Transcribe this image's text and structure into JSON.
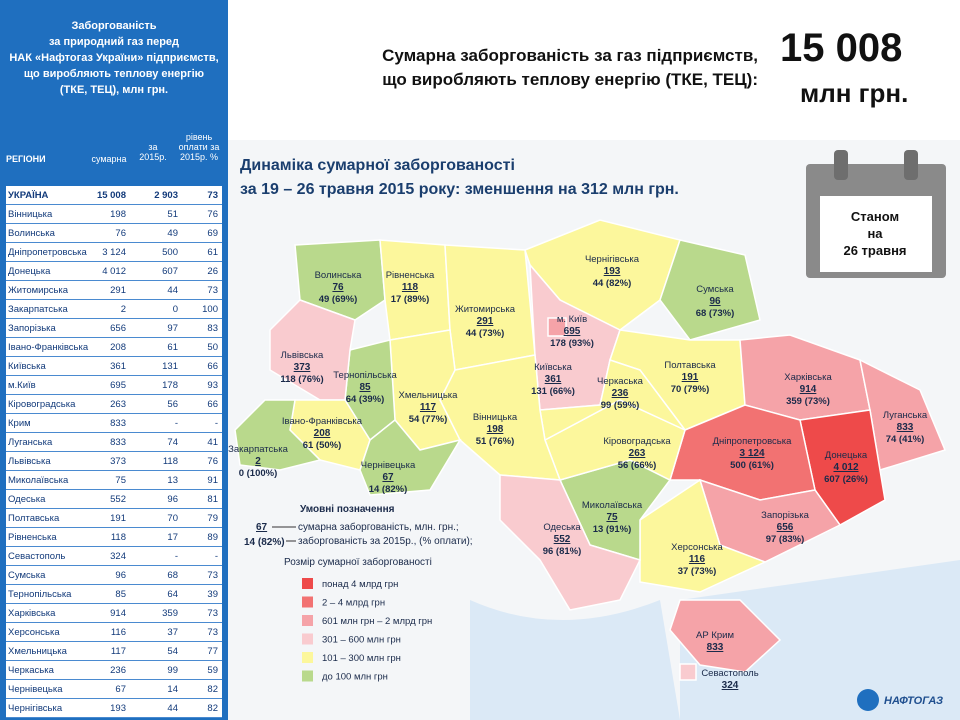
{
  "sidebar": {
    "title": [
      "Заборгованість",
      "за природний газ перед",
      "НАК «Нафтогаз України» підприємств,",
      "що виробляють теплову енергію",
      "(ТКЕ, ТЕЦ), млн грн."
    ],
    "table": {
      "header": [
        "РЕГІОНИ",
        "сумарна",
        "за 2015р.",
        "рівень оплати за 2015р. %"
      ],
      "rows": [
        [
          "УКРАЇНА",
          "15 008",
          "2 903",
          "73"
        ],
        [
          "Вінницька",
          "198",
          "51",
          "76"
        ],
        [
          "Волинська",
          "76",
          "49",
          "69"
        ],
        [
          "Дніпропетровська",
          "3 124",
          "500",
          "61"
        ],
        [
          "Донецька",
          "4 012",
          "607",
          "26"
        ],
        [
          "Житомирська",
          "291",
          "44",
          "73"
        ],
        [
          "Закарпатська",
          "2",
          "0",
          "100"
        ],
        [
          "Запорізька",
          "656",
          "97",
          "83"
        ],
        [
          "Івано-Франківська",
          "208",
          "61",
          "50"
        ],
        [
          "Київська",
          "361",
          "131",
          "66"
        ],
        [
          "м.Київ",
          "695",
          "178",
          "93"
        ],
        [
          "Кіровоградська",
          "263",
          "56",
          "66"
        ],
        [
          "Крим",
          "833",
          "-",
          "-"
        ],
        [
          "Луганська",
          "833",
          "74",
          "41"
        ],
        [
          "Львівська",
          "373",
          "118",
          "76"
        ],
        [
          "Миколаївська",
          "75",
          "13",
          "91"
        ],
        [
          "Одеська",
          "552",
          "96",
          "81"
        ],
        [
          "Полтавська",
          "191",
          "70",
          "79"
        ],
        [
          "Рівненська",
          "118",
          "17",
          "89"
        ],
        [
          "Севастополь",
          "324",
          "-",
          "-"
        ],
        [
          "Сумська",
          "96",
          "68",
          "73"
        ],
        [
          "Тернопільська",
          "85",
          "64",
          "39"
        ],
        [
          "Харківська",
          "914",
          "359",
          "73"
        ],
        [
          "Херсонська",
          "116",
          "37",
          "73"
        ],
        [
          "Хмельницька",
          "117",
          "54",
          "77"
        ],
        [
          "Черкаська",
          "236",
          "99",
          "59"
        ],
        [
          "Чернівецька",
          "67",
          "14",
          "82"
        ],
        [
          "Чернігівська",
          "193",
          "44",
          "82"
        ]
      ]
    }
  },
  "header": {
    "headline": [
      "Сумарна заборгованість за газ підприємств,",
      "що виробляють теплову енергію (ТКЕ, ТЕЦ):"
    ],
    "total": "15 008",
    "unit": "млн грн."
  },
  "subtitle": [
    "Динаміка сумарної заборгованості",
    "за 19 – 26 травня 2015 року: зменшення на 312 млн грн."
  ],
  "calendar": [
    "Станом",
    "на",
    "26 травня"
  ],
  "map": {
    "regions": [
      {
        "name": "Волинська",
        "total": "76",
        "detail": "49 (69%)"
      },
      {
        "name": "Рівненська",
        "total": "118",
        "detail": "17 (89%)"
      },
      {
        "name": "Житомирська",
        "total": "291",
        "detail": "44 (73%)"
      },
      {
        "name": "Чернігівська",
        "total": "193",
        "detail": "44 (82%)"
      },
      {
        "name": "Сумська",
        "total": "96",
        "detail": "68 (73%)"
      },
      {
        "name": "Київська",
        "total": "361",
        "detail": "131 (66%)"
      },
      {
        "name": "Полтавська",
        "total": "191",
        "detail": "70 (79%)"
      },
      {
        "name": "Харківська",
        "total": "914",
        "detail": "359 (73%)"
      },
      {
        "name": "Луганська",
        "total": "833",
        "detail": "74 (41%)"
      },
      {
        "name": "Донецька",
        "total": "4 012",
        "detail": "607 (26%)"
      },
      {
        "name": "Дніпропетровська",
        "total": "3 124",
        "detail": "500 (61%)"
      },
      {
        "name": "Запорізька",
        "total": "656",
        "detail": "97 (83%)"
      },
      {
        "name": "Херсонська",
        "total": "116",
        "detail": "37 (73%)"
      },
      {
        "name": "Миколаївська",
        "total": "75",
        "detail": "13 (91%)"
      },
      {
        "name": "Кіровоградська",
        "total": "263",
        "detail": "56 (66%)"
      },
      {
        "name": "Черкаська",
        "total": "236",
        "detail": "99 (59%)"
      },
      {
        "name": "Вінницька",
        "total": "198",
        "detail": "51 (76%)"
      },
      {
        "name": "Хмельницька",
        "total": "117",
        "detail": "54 (77%)"
      },
      {
        "name": "Тернопільська",
        "total": "85",
        "detail": "64 (39%)"
      },
      {
        "name": "Львівська",
        "total": "373",
        "detail": "118 (76%)"
      },
      {
        "name": "Івано-Франківська",
        "total": "208",
        "detail": "61 (50%)"
      },
      {
        "name": "Закарпатська",
        "total": "2",
        "detail": "0 (100%)"
      },
      {
        "name": "Чернівецька",
        "total": "67",
        "detail": "14 (82%)"
      },
      {
        "name": "Одеська",
        "total": "552",
        "detail": "96 (81%)"
      },
      {
        "name": "АР Крим",
        "total": "833"
      },
      {
        "name": "м. Київ",
        "total": "695",
        "detail": "178 (93%)"
      },
      {
        "name": "Севастополь",
        "total": "324"
      }
    ]
  },
  "legend": {
    "title": "Умовні позначення",
    "example_total": "67",
    "example_detail": "14 (82%)",
    "example_text": [
      "сумарна заборгованість, млн. грн.;",
      "заборгованість за 2015р., (% оплати);"
    ],
    "size_title": "Розмір сумарної заборгованості",
    "ranges": [
      {
        "label": "понад 4 млрд грн",
        "color": "#ee4a4a"
      },
      {
        "label": "2 – 4 млрд грн",
        "color": "#f27272"
      },
      {
        "label": "601 млн грн – 2 млрд грн",
        "color": "#f5a3a8"
      },
      {
        "label": "301 – 600 млн грн",
        "color": "#f9cbcf"
      },
      {
        "label": "101 – 300 млн грн",
        "color": "#fcf79c"
      },
      {
        "label": "до 100 млн грн",
        "color": "#b9d98c"
      }
    ]
  },
  "logo": "НАФТОГАЗ"
}
